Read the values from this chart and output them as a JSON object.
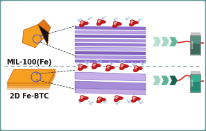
{
  "background_color": "#e8eded",
  "border_color": "#5a9090",
  "top_label": "2D Fe-BTC",
  "bottom_label": "MIL-100(Fe)",
  "orange_color": "#f5a020",
  "orange_dark": "#c05000",
  "arrow_color_dark": "#1a6050",
  "arrow_color_mid": "#4aaa88",
  "arrow_color_light": "#8acab8",
  "curve_color": "#e82020",
  "vial1_color": "#35b090",
  "vial1_dark": "#1a7060",
  "vial2_color": "#5a9080",
  "vial2_dark": "#2a5040",
  "purple_light": "#c0a8e8",
  "purple_mid": "#9878d0",
  "purple_dark": "#7050b0",
  "label_fontsize": 7.0,
  "panel_white": "#ffffff"
}
